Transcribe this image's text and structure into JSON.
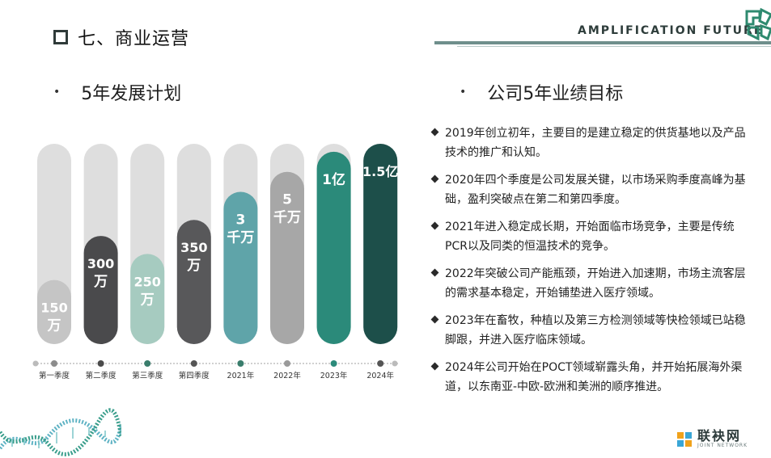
{
  "header": {
    "section_title": "七、商业运营",
    "brand": "AMPLIFICATION FUTURE",
    "logo_icon": "brand-logo-icon"
  },
  "plan": {
    "bullet": "•",
    "heading": "5年发展计划"
  },
  "goals": {
    "bullet": "•",
    "heading": "公司5年业绩目标",
    "items": [
      "2019年创立初年，主要目的是建立稳定的供货基地以及产品技术的推广和认知。",
      "2020年四个季度是公司发展关键，以市场采购季度高峰为基础，盈利突破点在第二和第四季度。",
      "2021年进入稳定成长期，开始面临市场竞争，主要是传统PCR以及同类的恒温技术的竞争。",
      "2022年突破公司产能瓶颈，开始进入加速期，市场主流客层的需求基本稳定，开始铺垫进入医疗领域。",
      "2023年在畜牧，种植以及第三方检测领域等快检领域已站稳脚跟，并进入医疗临床领域。",
      "2024年公司开始在POCT领域崭露头角，并开始拓展海外渠道，以东南亚-中欧-欧洲和美洲的顺序推进。"
    ]
  },
  "chart_data": {
    "type": "bar",
    "categories": [
      "第一季度",
      "第二季度",
      "第三季度",
      "第四季度",
      "2021年",
      "2022年",
      "2023年",
      "2024年"
    ],
    "values": [
      1500000,
      3000000,
      2500000,
      3500000,
      30000000,
      50000000,
      100000000,
      150000000
    ],
    "data_labels": [
      [
        "150",
        "万"
      ],
      [
        "300",
        "万"
      ],
      [
        "250",
        "万"
      ],
      [
        "350",
        "万"
      ],
      [
        "3",
        "千万"
      ],
      [
        "5",
        "千万"
      ],
      [
        "1亿"
      ],
      [
        "1.5亿"
      ]
    ],
    "fill_levels": [
      0.32,
      0.54,
      0.45,
      0.62,
      0.76,
      0.86,
      0.96,
      1.0
    ],
    "colors": [
      "#c5c5c5",
      "#4a4a4c",
      "#a6cbc0",
      "#58585a",
      "#5fa4a9",
      "#a7a7a7",
      "#2b8a7a",
      "#1d4f4a"
    ],
    "track_color": "#dedede",
    "timeline_colors": [
      "#8c8c8c",
      "#4b4b4b",
      "#3a7d6c",
      "#555555",
      "#3a7d6c",
      "#9a9a9a",
      "#2b8a7a",
      "#555555"
    ],
    "label_color": "#ffffff",
    "tick_color": "#333333"
  },
  "watermark": {
    "cn": "联袂网",
    "en": "JOINT NETWORK",
    "icon": "joint-network-icon"
  },
  "decor": {
    "dna_icon": "dna-helix-icon"
  }
}
